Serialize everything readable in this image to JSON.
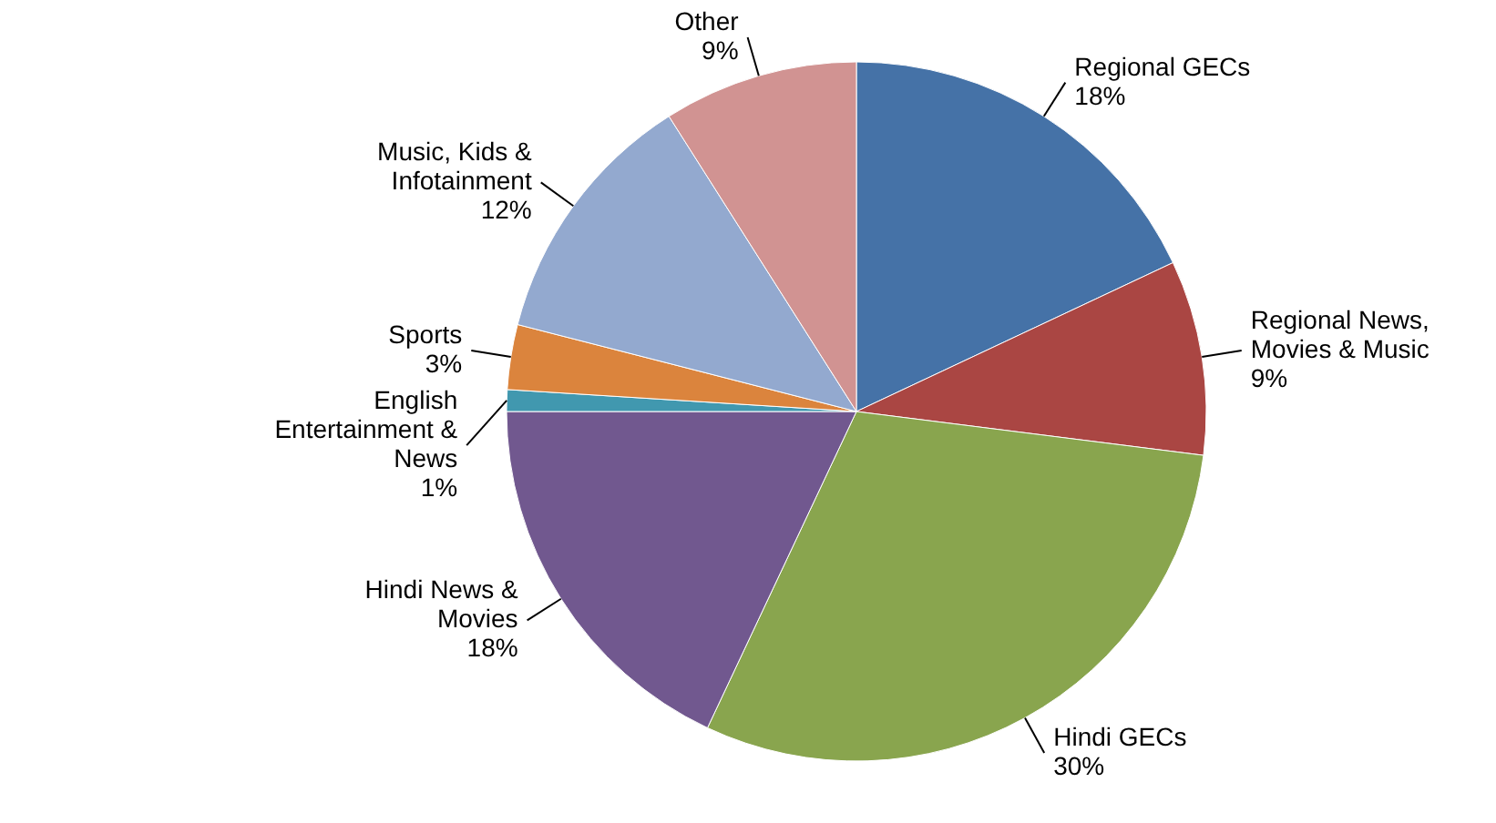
{
  "chart_data": {
    "type": "pie",
    "categories": [
      "Regional GECs",
      "Regional News, Movies & Music",
      "Hindi GECs",
      "Hindi News & Movies",
      "English Entertainment & News",
      "Sports",
      "Music, Kids & Infotainment",
      "Other"
    ],
    "values": [
      18,
      9,
      30,
      18,
      1,
      3,
      12,
      9
    ],
    "value_labels": [
      "18%",
      "9%",
      "30%",
      "18%",
      "1%",
      "3%",
      "12%",
      "9%"
    ],
    "colors": [
      "#4572a7",
      "#aa4643",
      "#89a54e",
      "#71588f",
      "#4198af",
      "#db843d",
      "#93a9cf",
      "#d19392"
    ]
  }
}
